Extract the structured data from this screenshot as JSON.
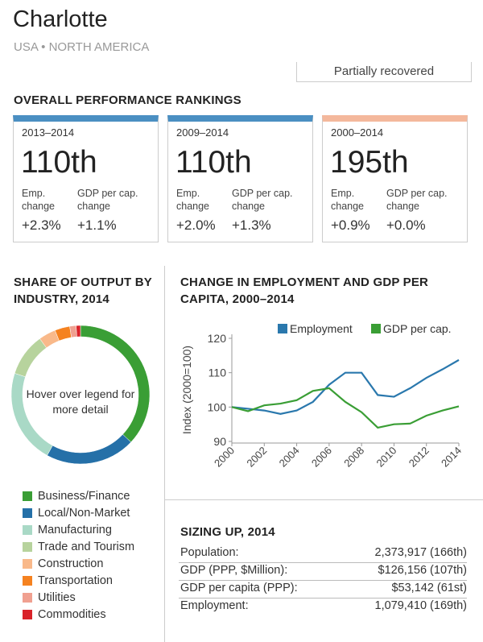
{
  "header": {
    "title": "Charlotte",
    "subtitle": "USA • NORTH AMERICA",
    "status": "Partially recovered"
  },
  "rankings": {
    "title": "OVERALL PERFORMANCE RANKINGS",
    "cards": [
      {
        "period": "2013–2014",
        "rank": "110th",
        "emp_label": "Emp. change",
        "gdp_label": "GDP per cap. change",
        "emp_value": "+2.3%",
        "gdp_value": "+1.1%",
        "color": "#4a8fc2"
      },
      {
        "period": "2009–2014",
        "rank": "110th",
        "emp_label": "Emp. change",
        "gdp_label": "GDP per cap. change",
        "emp_value": "+2.0%",
        "gdp_value": "+1.3%",
        "color": "#4a8fc2"
      },
      {
        "period": "2000–2014",
        "rank": "195th",
        "emp_label": "Emp. change",
        "gdp_label": "GDP per cap. change",
        "emp_value": "+0.9%",
        "gdp_value": "+0.0%",
        "color": "#f4b89c"
      }
    ]
  },
  "chart_data": [
    {
      "type": "donut",
      "title": "SHARE OF OUTPUT BY INDUSTRY, 2014",
      "annotation": "Hover over legend for more detail",
      "categories": [
        "Business/Finance",
        "Local/Non-Market",
        "Manufacturing",
        "Trade and Tourism",
        "Construction",
        "Transportation",
        "Utilities",
        "Commodities"
      ],
      "values": [
        37,
        21,
        22,
        10,
        4,
        3.5,
        1.5,
        1
      ],
      "colors": [
        "#3a9e35",
        "#2570a8",
        "#a9d9c6",
        "#b7d39d",
        "#f9b98a",
        "#f58220",
        "#f0a090",
        "#d9232a"
      ]
    },
    {
      "type": "line",
      "title": "CHANGE IN EMPLOYMENT AND GDP PER CAPITA, 2000–2014",
      "ylabel": "Index (2000=100)",
      "x": [
        2000,
        2001,
        2002,
        2003,
        2004,
        2005,
        2006,
        2007,
        2008,
        2009,
        2010,
        2011,
        2012,
        2013,
        2014
      ],
      "xlim": [
        2000,
        2014
      ],
      "xticks": [
        2000,
        2002,
        2004,
        2006,
        2008,
        2010,
        2012,
        2014
      ],
      "ylim": [
        90,
        120
      ],
      "yticks": [
        90,
        100,
        110,
        120
      ],
      "series": [
        {
          "name": "Employment",
          "color": "#2a78ad",
          "values": [
            100,
            99.5,
            99,
            98,
            99,
            101.5,
            106.5,
            110,
            110,
            103.5,
            103,
            105.5,
            108.5,
            111,
            113.7
          ]
        },
        {
          "name": "GDP per cap.",
          "color": "#3a9e35",
          "values": [
            100,
            98.8,
            100.5,
            101,
            102,
            104.7,
            105.5,
            101.5,
            98.5,
            94,
            95,
            95.2,
            97.5,
            99,
            100.2
          ]
        }
      ]
    }
  ],
  "sizing": {
    "title": "SIZING UP, 2014",
    "rows": [
      [
        "Population:",
        "2,373,917 (166th)"
      ],
      [
        "GDP (PPP, $Million):",
        "$126,156 (107th)"
      ],
      [
        "GDP per capita (PPP):",
        "$53,142 (61st)"
      ],
      [
        "Employment:",
        "1,079,410 (169th)"
      ]
    ]
  }
}
